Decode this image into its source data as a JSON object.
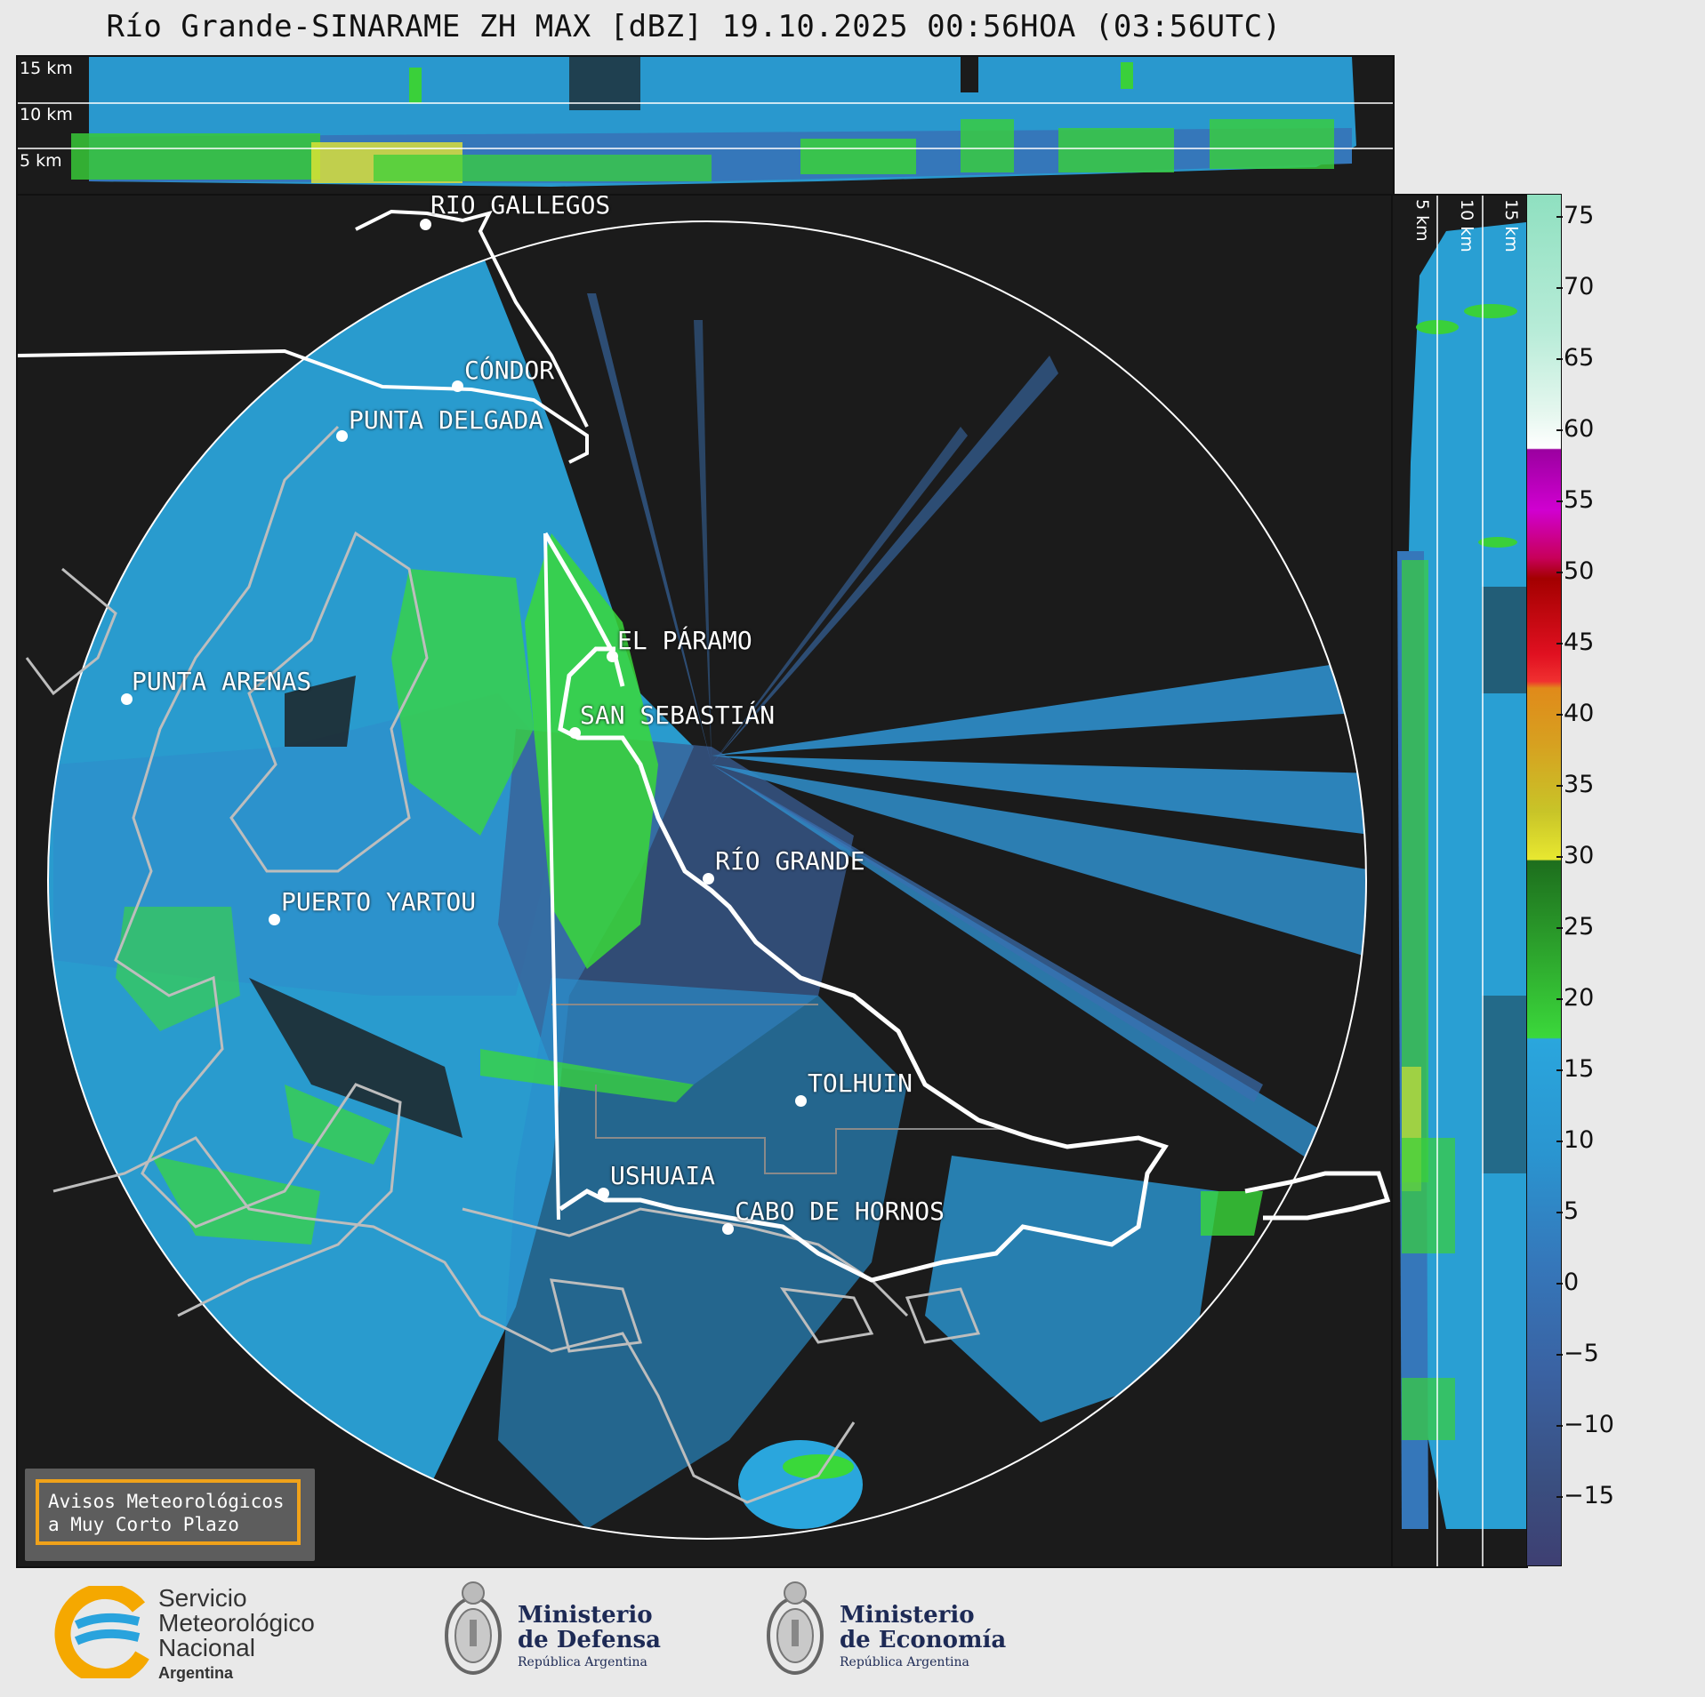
{
  "title": "Río Grande-SINARAME ZH MAX [dBZ] 19.10.2025 00:56HOA (03:56UTC)",
  "top_panel": {
    "height_labels": [
      "15 km",
      "10 km",
      "5 km"
    ]
  },
  "side_panel": {
    "height_labels": [
      "5 km",
      "10 km",
      "15 km"
    ]
  },
  "cities": [
    {
      "name": "RÍO GALLEGOS",
      "key": "rio-gallegos"
    },
    {
      "name": "CÓNDOR",
      "key": "condor"
    },
    {
      "name": "PUNTA DELGADA",
      "key": "punta-delgada"
    },
    {
      "name": "EL PÁRAMO",
      "key": "el-paramo"
    },
    {
      "name": "SAN SEBASTIÁN",
      "key": "san-sebastian"
    },
    {
      "name": "PUNTA ARENAS",
      "key": "punta-arenas"
    },
    {
      "name": "RÍO GRANDE",
      "key": "rio-grande"
    },
    {
      "name": "PUERTO YARTOU",
      "key": "puerto-yartou"
    },
    {
      "name": "TOLHUIN",
      "key": "tolhuin"
    },
    {
      "name": "USHUAIA",
      "key": "ushuaia"
    },
    {
      "name": "CABO DE HORNOS",
      "key": "cabo-de-hornos"
    }
  ],
  "colorbar": {
    "unit": "dBZ",
    "range": [
      -20,
      77
    ],
    "ticks": [
      "75",
      "70",
      "65",
      "60",
      "55",
      "50",
      "45",
      "40",
      "35",
      "30",
      "25",
      "20",
      "15",
      "10",
      "5",
      "0",
      "−5",
      "−10",
      "−15"
    ],
    "colors": {
      "light_blue": "#2aa6dd",
      "mid_blue": "#3a7fc0",
      "dark_blue": "#3a4f80",
      "green": "#3bd83b",
      "dark_green": "#1d7a1d",
      "yellow": "#e8e830",
      "orange": "#e08a1a",
      "red": "#c80000",
      "magenta": "#d000d0",
      "white": "#ffffff",
      "mint": "#8fe0c0"
    }
  },
  "avisos": {
    "line1": "Avisos Meteorológicos",
    "line2": "a Muy Corto Plazo"
  },
  "logos": {
    "smn": {
      "line1": "Servicio",
      "line2": "Meteorológico",
      "line3": "Nacional",
      "line4": "Argentina"
    },
    "defensa": {
      "line1": "Ministerio",
      "line2": "de Defensa",
      "line3": "República Argentina"
    },
    "economia": {
      "line1": "Ministerio",
      "line2": "de Economía",
      "line3": "República Argentina"
    }
  }
}
